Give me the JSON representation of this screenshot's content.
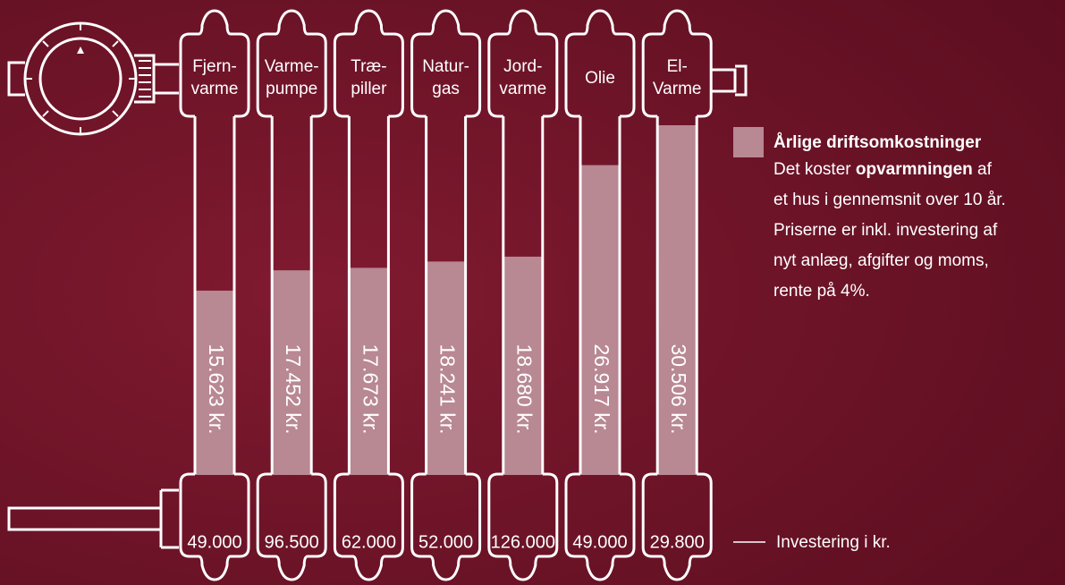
{
  "chart_data": {
    "type": "bar",
    "categories": [
      [
        "Fjern-",
        "varme"
      ],
      [
        "Varme-",
        "pumpe"
      ],
      [
        "Træ-",
        "piller"
      ],
      [
        "Natur-",
        "gas"
      ],
      [
        "Jord-",
        "varme"
      ],
      [
        "Olie"
      ],
      [
        "El-",
        "Varme"
      ]
    ],
    "series": [
      {
        "name": "Årlige driftsomkostninger",
        "color": "#b88893",
        "values": [
          15623,
          17452,
          17673,
          18241,
          18680,
          26917,
          30506
        ],
        "value_labels": [
          "15.623 kr.",
          "17.452 kr.",
          "17.673 kr.",
          "18.241 kr.",
          "18.680 kr.",
          "26.917 kr.",
          "30.506 kr."
        ]
      }
    ],
    "description": [
      [
        {
          "text": "Det koster "
        },
        {
          "text": "opvarmningen",
          "bold": true
        },
        {
          "text": " af"
        }
      ],
      [
        {
          "text": "et hus i gennemsnit over 10 år."
        }
      ],
      [
        {
          "text": "Priserne er inkl. investering af"
        }
      ],
      [
        {
          "text": "nyt anlæg, afgifter og moms,"
        }
      ],
      [
        {
          "text": "rente på 4%."
        }
      ]
    ],
    "investment": {
      "name": "Investering i kr.",
      "values": [
        49000,
        96500,
        62000,
        52000,
        126000,
        49000,
        29800
      ],
      "value_labels": [
        "49.000",
        "96.500",
        "62.000",
        "52.000",
        "126.000",
        "49.000",
        "29.800"
      ]
    }
  }
}
